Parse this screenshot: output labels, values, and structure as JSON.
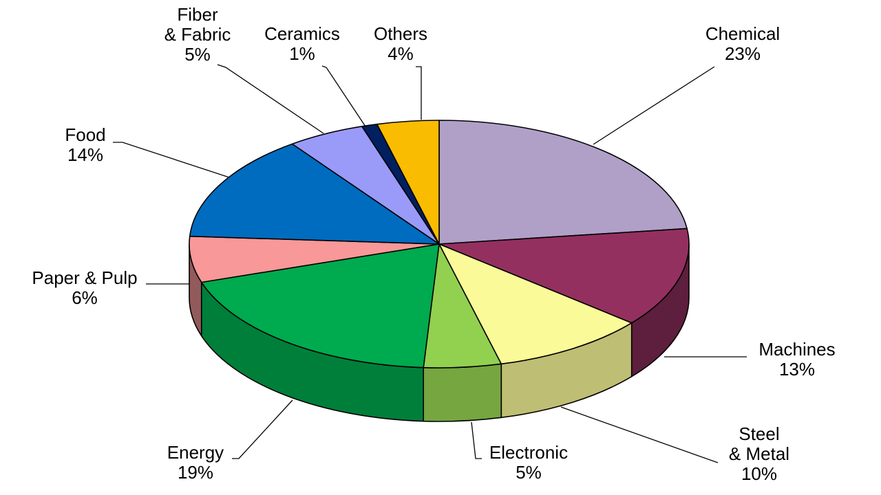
{
  "chart_data": {
    "type": "pie",
    "title": "",
    "style": "3d",
    "slices": [
      {
        "label": "Chemical",
        "label_lines": [
          "Chemical",
          "23%"
        ],
        "value": 23,
        "color": "#B0A0C8"
      },
      {
        "label": "Machines",
        "label_lines": [
          "Machines",
          "13%"
        ],
        "value": 13,
        "color": "#943060"
      },
      {
        "label": "Steel & Metal",
        "label_lines": [
          "Steel",
          "& Metal",
          "10%"
        ],
        "value": 10,
        "color": "#FAFA98"
      },
      {
        "label": "Electronic",
        "label_lines": [
          "Electronic",
          "5%"
        ],
        "value": 5,
        "color": "#92D050"
      },
      {
        "label": "Energy",
        "label_lines": [
          "Energy",
          "19%"
        ],
        "value": 19,
        "color": "#00AA4E"
      },
      {
        "label": "Paper & Pulp",
        "label_lines": [
          "Paper & Pulp",
          "6%"
        ],
        "value": 6,
        "color": "#F89898"
      },
      {
        "label": "Food",
        "label_lines": [
          "Food",
          "14%"
        ],
        "value": 14,
        "color": "#006CC0"
      },
      {
        "label": "Fiber & Fabric",
        "label_lines": [
          "Fiber",
          "& Fabric",
          "5%"
        ],
        "value": 5,
        "color": "#9A9AF8"
      },
      {
        "label": "Ceramics",
        "label_lines": [
          "Ceramics",
          "1%"
        ],
        "value": 1,
        "color": "#002060"
      },
      {
        "label": "Others",
        "label_lines": [
          "Others",
          "4%"
        ],
        "value": 4,
        "color": "#FABC00"
      }
    ]
  }
}
